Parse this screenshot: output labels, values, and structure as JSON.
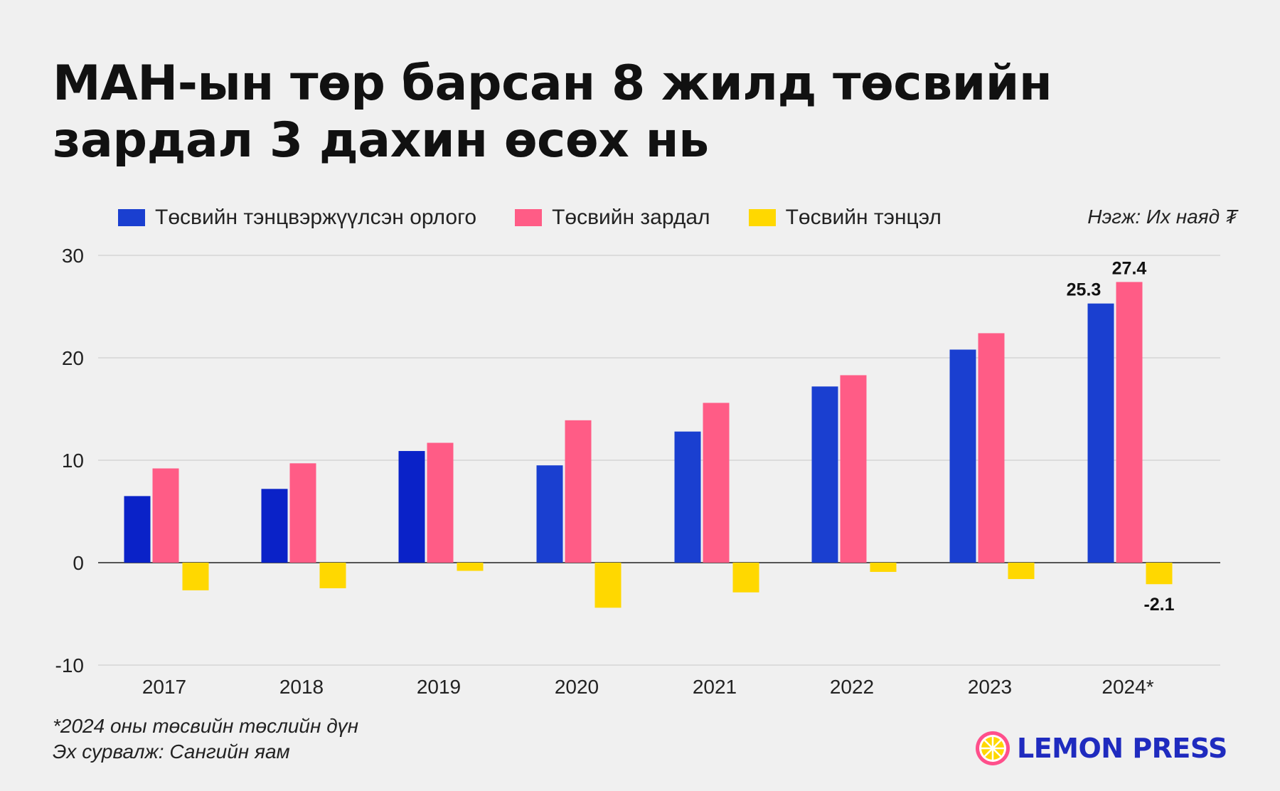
{
  "title_lines": [
    "МАН-ын төр барсан 8 жилд төсвийн",
    "зардал 3 дахин өсөх нь"
  ],
  "unit": "Нэгж: Их наяд ₮",
  "footnote": "*2024 оны төсвийн төслийн дүн",
  "source": "Эх сурвалж: Сангийн яам",
  "logo": {
    "text": "LEMON PRESS",
    "icon": "lemon-slice-icon"
  },
  "colors": {
    "revenue": "#1a3fd0",
    "revenue_dark": "#0a22c8",
    "expense": "#ff5c86",
    "balance": "#ffd800",
    "grid": "#d6d6d6",
    "axis": "#555555",
    "logo_ring": "#ff4f8b",
    "logo_fill": "#ffd800"
  },
  "chart_data": {
    "type": "bar",
    "categories": [
      "2017",
      "2018",
      "2019",
      "2020",
      "2021",
      "2022",
      "2023",
      "2024*"
    ],
    "series": [
      {
        "name": "Төсвийн тэнцвэржүүлсэн орлого",
        "color": "#1a3fd0",
        "values": [
          6.5,
          7.2,
          10.9,
          9.5,
          12.8,
          17.2,
          20.8,
          25.3
        ]
      },
      {
        "name": "Төсвийн зардал",
        "color": "#ff5c86",
        "values": [
          9.2,
          9.7,
          11.7,
          13.9,
          15.6,
          18.3,
          22.4,
          27.4
        ]
      },
      {
        "name": "Төсвийн тэнцэл",
        "color": "#ffd800",
        "values": [
          -2.7,
          -2.5,
          -0.8,
          -4.4,
          -2.9,
          -0.9,
          -1.6,
          -2.1
        ]
      }
    ],
    "data_labels": [
      {
        "category": "2024*",
        "series": 0,
        "text": "25.3"
      },
      {
        "category": "2024*",
        "series": 1,
        "text": "27.4"
      },
      {
        "category": "2024*",
        "series": 2,
        "text": "-2.1"
      }
    ],
    "yticks": [
      "30",
      "20",
      "10",
      "0",
      "-10"
    ],
    "ylim": [
      -10,
      30
    ],
    "grid": true,
    "legend": "top"
  }
}
